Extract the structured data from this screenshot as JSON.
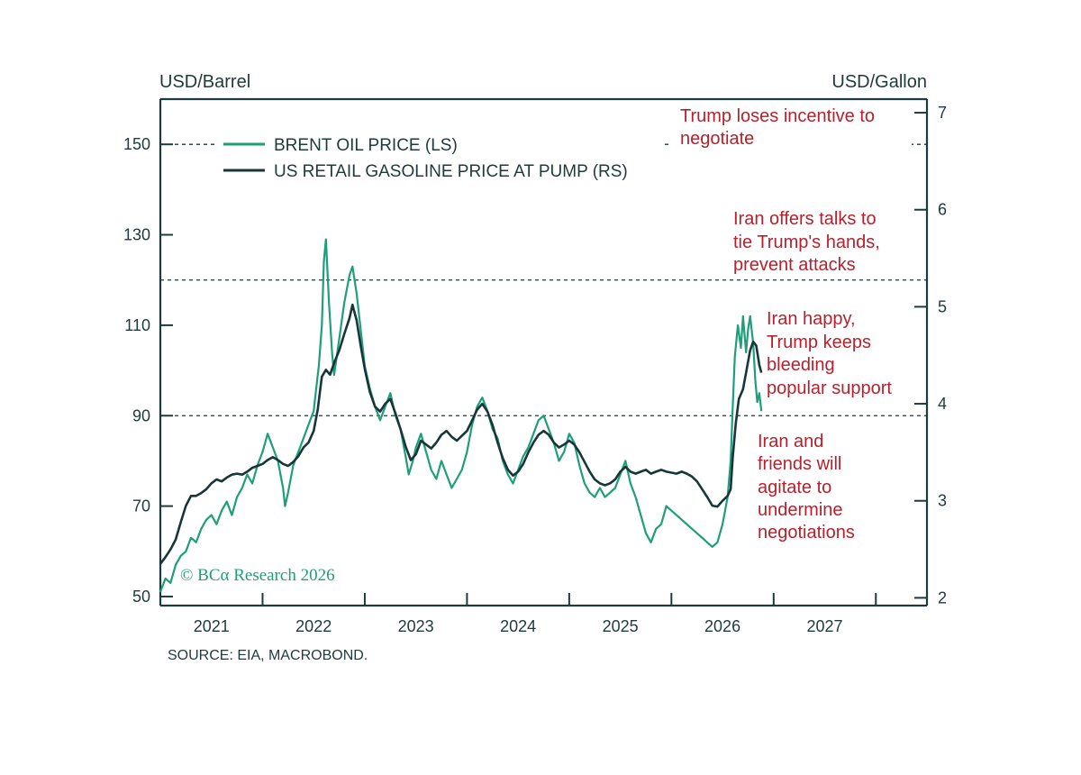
{
  "chart_data": {
    "type": "line",
    "left_axis": {
      "label": "USD/Barrel",
      "ticks": [
        50,
        70,
        90,
        110,
        130,
        150
      ],
      "range": [
        48,
        160
      ]
    },
    "right_axis": {
      "label": "USD/Gallon",
      "ticks": [
        2,
        3,
        4,
        5,
        6,
        7
      ],
      "range": [
        1.92,
        7.14
      ]
    },
    "x_axis": {
      "ticks": [
        "2021",
        "2022",
        "2023",
        "2024",
        "2025",
        "2026",
        "2027"
      ],
      "range": [
        2020.5,
        2028.0
      ]
    },
    "series": [
      {
        "name": "BRENT OIL PRICE (LS)",
        "axis": "left",
        "color": "#1f9e7a",
        "points": [
          [
            2020.5,
            51
          ],
          [
            2020.55,
            54
          ],
          [
            2020.6,
            53
          ],
          [
            2020.65,
            57
          ],
          [
            2020.7,
            59
          ],
          [
            2020.75,
            60
          ],
          [
            2020.8,
            63
          ],
          [
            2020.85,
            62
          ],
          [
            2020.9,
            65
          ],
          [
            2020.95,
            67
          ],
          [
            2021.0,
            68
          ],
          [
            2021.05,
            66
          ],
          [
            2021.1,
            69
          ],
          [
            2021.15,
            71
          ],
          [
            2021.2,
            68
          ],
          [
            2021.25,
            72
          ],
          [
            2021.3,
            74
          ],
          [
            2021.35,
            77
          ],
          [
            2021.4,
            75
          ],
          [
            2021.45,
            79
          ],
          [
            2021.5,
            82
          ],
          [
            2021.55,
            86
          ],
          [
            2021.6,
            83
          ],
          [
            2021.65,
            80
          ],
          [
            2021.7,
            74
          ],
          [
            2021.72,
            70
          ],
          [
            2021.75,
            73
          ],
          [
            2021.8,
            79
          ],
          [
            2021.85,
            82
          ],
          [
            2021.9,
            85
          ],
          [
            2021.95,
            88
          ],
          [
            2022.0,
            91
          ],
          [
            2022.03,
            97
          ],
          [
            2022.05,
            101
          ],
          [
            2022.08,
            110
          ],
          [
            2022.1,
            124
          ],
          [
            2022.12,
            129
          ],
          [
            2022.15,
            115
          ],
          [
            2022.18,
            104
          ],
          [
            2022.2,
            99
          ],
          [
            2022.25,
            107
          ],
          [
            2022.3,
            115
          ],
          [
            2022.35,
            121
          ],
          [
            2022.38,
            123
          ],
          [
            2022.42,
            117
          ],
          [
            2022.46,
            109
          ],
          [
            2022.5,
            101
          ],
          [
            2022.55,
            96
          ],
          [
            2022.6,
            92
          ],
          [
            2022.65,
            89
          ],
          [
            2022.7,
            92
          ],
          [
            2022.75,
            95
          ],
          [
            2022.8,
            90
          ],
          [
            2022.85,
            87
          ],
          [
            2022.9,
            81
          ],
          [
            2022.93,
            77
          ],
          [
            2022.97,
            80
          ],
          [
            2023.0,
            83
          ],
          [
            2023.05,
            86
          ],
          [
            2023.1,
            82
          ],
          [
            2023.15,
            78
          ],
          [
            2023.2,
            76
          ],
          [
            2023.25,
            80
          ],
          [
            2023.3,
            77
          ],
          [
            2023.35,
            74
          ],
          [
            2023.4,
            76
          ],
          [
            2023.45,
            78
          ],
          [
            2023.5,
            82
          ],
          [
            2023.55,
            88
          ],
          [
            2023.6,
            92
          ],
          [
            2023.65,
            94
          ],
          [
            2023.7,
            91
          ],
          [
            2023.75,
            87
          ],
          [
            2023.8,
            85
          ],
          [
            2023.85,
            80
          ],
          [
            2023.9,
            77
          ],
          [
            2023.95,
            75
          ],
          [
            2024.0,
            78
          ],
          [
            2024.05,
            81
          ],
          [
            2024.1,
            83
          ],
          [
            2024.15,
            86
          ],
          [
            2024.2,
            89
          ],
          [
            2024.25,
            90
          ],
          [
            2024.3,
            87
          ],
          [
            2024.35,
            84
          ],
          [
            2024.4,
            80
          ],
          [
            2024.45,
            82
          ],
          [
            2024.5,
            86
          ],
          [
            2024.55,
            84
          ],
          [
            2024.6,
            79
          ],
          [
            2024.65,
            75
          ],
          [
            2024.7,
            73
          ],
          [
            2024.75,
            72
          ],
          [
            2024.8,
            74
          ],
          [
            2024.85,
            72
          ],
          [
            2024.9,
            73
          ],
          [
            2024.95,
            74
          ],
          [
            2025.0,
            77
          ],
          [
            2025.05,
            80
          ],
          [
            2025.1,
            75
          ],
          [
            2025.15,
            72
          ],
          [
            2025.2,
            68
          ],
          [
            2025.25,
            64
          ],
          [
            2025.3,
            62
          ],
          [
            2025.35,
            65
          ],
          [
            2025.4,
            66
          ],
          [
            2025.45,
            70
          ],
          [
            2025.5,
            69
          ],
          [
            2025.55,
            68
          ],
          [
            2025.6,
            67
          ],
          [
            2025.65,
            66
          ],
          [
            2025.7,
            65
          ],
          [
            2025.75,
            64
          ],
          [
            2025.8,
            63
          ],
          [
            2025.85,
            62
          ],
          [
            2025.9,
            61
          ],
          [
            2025.95,
            62
          ],
          [
            2026.0,
            66
          ],
          [
            2026.05,
            72
          ],
          [
            2026.08,
            80
          ],
          [
            2026.1,
            92
          ],
          [
            2026.12,
            103
          ],
          [
            2026.15,
            110
          ],
          [
            2026.18,
            105
          ],
          [
            2026.2,
            112
          ],
          [
            2026.23,
            104
          ],
          [
            2026.25,
            109
          ],
          [
            2026.27,
            112
          ],
          [
            2026.3,
            106
          ],
          [
            2026.32,
            98
          ],
          [
            2026.34,
            93
          ],
          [
            2026.36,
            95
          ],
          [
            2026.38,
            91
          ]
        ]
      },
      {
        "name": "US RETAIL GASOLINE PRICE AT PUMP (RS)",
        "axis": "right",
        "color": "#17363a",
        "points": [
          [
            2020.5,
            2.35
          ],
          [
            2020.55,
            2.42
          ],
          [
            2020.6,
            2.5
          ],
          [
            2020.65,
            2.6
          ],
          [
            2020.7,
            2.78
          ],
          [
            2020.75,
            2.95
          ],
          [
            2020.8,
            3.05
          ],
          [
            2020.85,
            3.05
          ],
          [
            2020.9,
            3.08
          ],
          [
            2020.95,
            3.12
          ],
          [
            2021.0,
            3.18
          ],
          [
            2021.05,
            3.22
          ],
          [
            2021.1,
            3.2
          ],
          [
            2021.15,
            3.24
          ],
          [
            2021.2,
            3.27
          ],
          [
            2021.25,
            3.28
          ],
          [
            2021.3,
            3.27
          ],
          [
            2021.35,
            3.3
          ],
          [
            2021.4,
            3.34
          ],
          [
            2021.45,
            3.36
          ],
          [
            2021.5,
            3.38
          ],
          [
            2021.55,
            3.42
          ],
          [
            2021.6,
            3.45
          ],
          [
            2021.65,
            3.42
          ],
          [
            2021.7,
            3.38
          ],
          [
            2021.75,
            3.36
          ],
          [
            2021.8,
            3.4
          ],
          [
            2021.85,
            3.46
          ],
          [
            2021.9,
            3.55
          ],
          [
            2021.95,
            3.6
          ],
          [
            2022.0,
            3.72
          ],
          [
            2022.04,
            3.94
          ],
          [
            2022.08,
            4.28
          ],
          [
            2022.12,
            4.35
          ],
          [
            2022.16,
            4.3
          ],
          [
            2022.2,
            4.42
          ],
          [
            2022.25,
            4.55
          ],
          [
            2022.3,
            4.72
          ],
          [
            2022.35,
            4.88
          ],
          [
            2022.38,
            5.02
          ],
          [
            2022.42,
            4.86
          ],
          [
            2022.46,
            4.6
          ],
          [
            2022.5,
            4.36
          ],
          [
            2022.55,
            4.12
          ],
          [
            2022.6,
            3.97
          ],
          [
            2022.65,
            3.92
          ],
          [
            2022.7,
            4.0
          ],
          [
            2022.75,
            4.05
          ],
          [
            2022.8,
            3.9
          ],
          [
            2022.85,
            3.74
          ],
          [
            2022.9,
            3.56
          ],
          [
            2022.95,
            3.42
          ],
          [
            2023.0,
            3.48
          ],
          [
            2023.05,
            3.62
          ],
          [
            2023.1,
            3.58
          ],
          [
            2023.15,
            3.54
          ],
          [
            2023.2,
            3.6
          ],
          [
            2023.25,
            3.68
          ],
          [
            2023.3,
            3.72
          ],
          [
            2023.35,
            3.66
          ],
          [
            2023.4,
            3.62
          ],
          [
            2023.45,
            3.67
          ],
          [
            2023.5,
            3.72
          ],
          [
            2023.55,
            3.83
          ],
          [
            2023.6,
            3.94
          ],
          [
            2023.65,
            4.0
          ],
          [
            2023.7,
            3.92
          ],
          [
            2023.75,
            3.78
          ],
          [
            2023.8,
            3.6
          ],
          [
            2023.85,
            3.44
          ],
          [
            2023.9,
            3.32
          ],
          [
            2023.95,
            3.26
          ],
          [
            2024.0,
            3.3
          ],
          [
            2024.05,
            3.38
          ],
          [
            2024.1,
            3.5
          ],
          [
            2024.15,
            3.6
          ],
          [
            2024.2,
            3.68
          ],
          [
            2024.25,
            3.72
          ],
          [
            2024.3,
            3.68
          ],
          [
            2024.35,
            3.6
          ],
          [
            2024.4,
            3.55
          ],
          [
            2024.45,
            3.58
          ],
          [
            2024.5,
            3.62
          ],
          [
            2024.55,
            3.58
          ],
          [
            2024.6,
            3.5
          ],
          [
            2024.65,
            3.4
          ],
          [
            2024.7,
            3.3
          ],
          [
            2024.75,
            3.22
          ],
          [
            2024.8,
            3.18
          ],
          [
            2024.85,
            3.16
          ],
          [
            2024.9,
            3.18
          ],
          [
            2024.95,
            3.22
          ],
          [
            2025.0,
            3.3
          ],
          [
            2025.05,
            3.35
          ],
          [
            2025.1,
            3.3
          ],
          [
            2025.15,
            3.28
          ],
          [
            2025.2,
            3.3
          ],
          [
            2025.25,
            3.32
          ],
          [
            2025.3,
            3.28
          ],
          [
            2025.35,
            3.3
          ],
          [
            2025.4,
            3.32
          ],
          [
            2025.45,
            3.3
          ],
          [
            2025.5,
            3.29
          ],
          [
            2025.55,
            3.28
          ],
          [
            2025.6,
            3.3
          ],
          [
            2025.65,
            3.28
          ],
          [
            2025.7,
            3.25
          ],
          [
            2025.75,
            3.2
          ],
          [
            2025.8,
            3.12
          ],
          [
            2025.85,
            3.04
          ],
          [
            2025.9,
            2.95
          ],
          [
            2025.95,
            2.94
          ],
          [
            2026.0,
            3.0
          ],
          [
            2026.05,
            3.05
          ],
          [
            2026.08,
            3.12
          ],
          [
            2026.1,
            3.45
          ],
          [
            2026.13,
            3.8
          ],
          [
            2026.16,
            4.05
          ],
          [
            2026.2,
            4.15
          ],
          [
            2026.23,
            4.32
          ],
          [
            2026.27,
            4.55
          ],
          [
            2026.3,
            4.64
          ],
          [
            2026.33,
            4.6
          ],
          [
            2026.36,
            4.4
          ],
          [
            2026.38,
            4.32
          ]
        ]
      }
    ],
    "threshold_lines": [
      {
        "axis": "left",
        "y": 150
      },
      {
        "axis": "left",
        "y": 120
      },
      {
        "axis": "left",
        "y": 90
      }
    ],
    "annotations": [
      {
        "text": "Trump loses incentive to negotiate",
        "lines": [
          "Trump loses incentive to",
          "negotiate"
        ]
      },
      {
        "text": "Iran offers talks to tie Trump's hands, prevent attacks",
        "lines": [
          "Iran offers talks to",
          "tie Trump's hands,",
          "prevent attacks"
        ]
      },
      {
        "text": "Iran happy, Trump keeps bleeding popular support",
        "lines": [
          "Iran happy,",
          "Trump keeps",
          "bleeding",
          "popular support"
        ]
      },
      {
        "text": "Iran and friends will agitate to undermine negotiations",
        "lines": [
          "Iran and",
          "friends will",
          "agitate to",
          "undermine",
          "negotiations"
        ]
      }
    ],
    "legend": {
      "placement": "top-left"
    },
    "source": "SOURCE: EIA, MACROBOND.",
    "copyright": "© BCα Research 2026",
    "grid": false,
    "colors": {
      "axis": "#1d3a3c",
      "annotation": "#b8202b",
      "brent": "#1f9e7a",
      "gasoline": "#17363a"
    }
  }
}
